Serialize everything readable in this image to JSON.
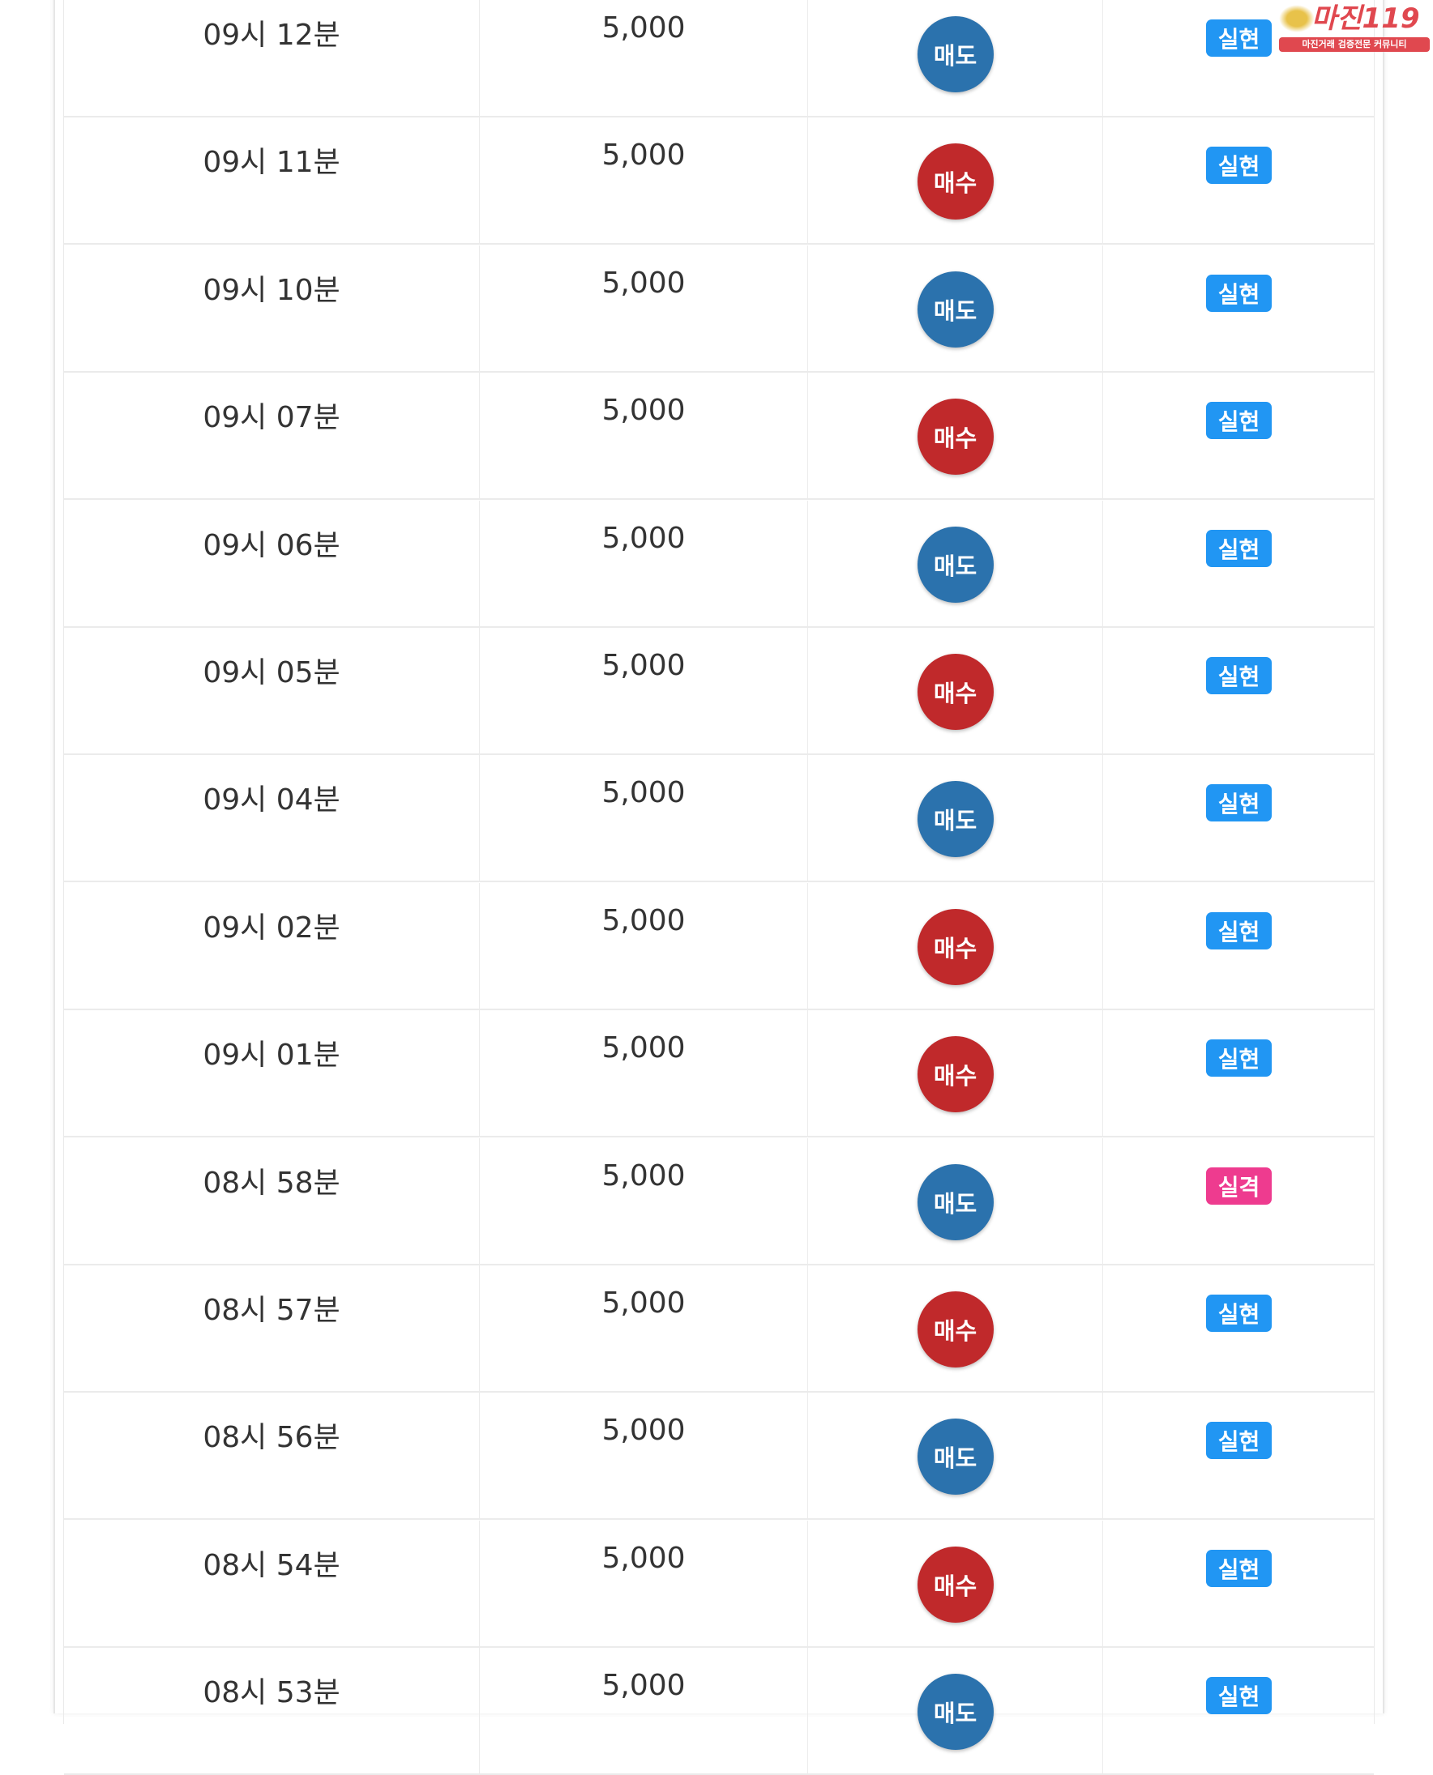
{
  "colors": {
    "sell": "#2b72ad",
    "buy": "#c0292b",
    "success": "#2196f3",
    "fail": "#ee3b8f"
  },
  "rows": [
    {
      "time": "09시 12분",
      "amount": "5,000",
      "side": "매도",
      "side_type": "sell",
      "result": "실현",
      "result_type": "success"
    },
    {
      "time": "09시 11분",
      "amount": "5,000",
      "side": "매수",
      "side_type": "buy",
      "result": "실현",
      "result_type": "success"
    },
    {
      "time": "09시 10분",
      "amount": "5,000",
      "side": "매도",
      "side_type": "sell",
      "result": "실현",
      "result_type": "success"
    },
    {
      "time": "09시 07분",
      "amount": "5,000",
      "side": "매수",
      "side_type": "buy",
      "result": "실현",
      "result_type": "success"
    },
    {
      "time": "09시 06분",
      "amount": "5,000",
      "side": "매도",
      "side_type": "sell",
      "result": "실현",
      "result_type": "success"
    },
    {
      "time": "09시 05분",
      "amount": "5,000",
      "side": "매수",
      "side_type": "buy",
      "result": "실현",
      "result_type": "success"
    },
    {
      "time": "09시 04분",
      "amount": "5,000",
      "side": "매도",
      "side_type": "sell",
      "result": "실현",
      "result_type": "success"
    },
    {
      "time": "09시 02분",
      "amount": "5,000",
      "side": "매수",
      "side_type": "buy",
      "result": "실현",
      "result_type": "success"
    },
    {
      "time": "09시 01분",
      "amount": "5,000",
      "side": "매수",
      "side_type": "buy",
      "result": "실현",
      "result_type": "success"
    },
    {
      "time": "08시 58분",
      "amount": "5,000",
      "side": "매도",
      "side_type": "sell",
      "result": "실격",
      "result_type": "fail"
    },
    {
      "time": "08시 57분",
      "amount": "5,000",
      "side": "매수",
      "side_type": "buy",
      "result": "실현",
      "result_type": "success"
    },
    {
      "time": "08시 56분",
      "amount": "5,000",
      "side": "매도",
      "side_type": "sell",
      "result": "실현",
      "result_type": "success"
    },
    {
      "time": "08시 54분",
      "amount": "5,000",
      "side": "매수",
      "side_type": "buy",
      "result": "실현",
      "result_type": "success"
    },
    {
      "time": "08시 53분",
      "amount": "5,000",
      "side": "매도",
      "side_type": "sell",
      "result": "실현",
      "result_type": "success"
    }
  ],
  "watermark": {
    "title": "마진119",
    "subtitle": "마진거래 검증전문 커뮤니티"
  }
}
